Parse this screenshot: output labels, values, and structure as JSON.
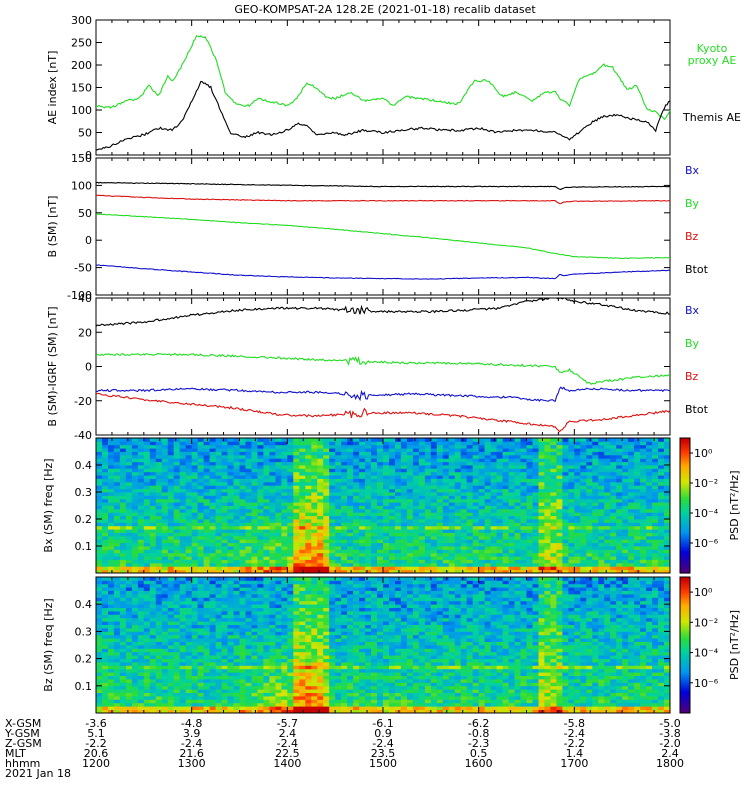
{
  "title": "GEO-KOMPSAT-2A 128.2E (2021-01-18) recalib dataset",
  "date_label": "2021 Jan 18",
  "colors": {
    "black": "#000000",
    "green": "#22dd22",
    "red": "#dd1111",
    "blue": "#1111cc"
  },
  "ephemeris": {
    "labels": [
      "X-GSM",
      "Y-GSM",
      "Z-GSM",
      "MLT",
      "hhmm"
    ],
    "columns": [
      [
        "-3.6",
        "5.1",
        "-2.2",
        "20.6",
        "1200"
      ],
      [
        "-4.8",
        "3.9",
        "-2.4",
        "21.6",
        "1300"
      ],
      [
        "-5.7",
        "2.4",
        "-2.4",
        "22.5",
        "1400"
      ],
      [
        "-6.1",
        "0.9",
        "-2.4",
        "23.5",
        "1500"
      ],
      [
        "-6.2",
        "-0.8",
        "-2.3",
        "0.5",
        "1600"
      ],
      [
        "-5.8",
        "-2.4",
        "-2.2",
        "1.4",
        "1700"
      ],
      [
        "-5.0",
        "-3.8",
        "-2.0",
        "2.4",
        "1800"
      ]
    ]
  },
  "colorbar": {
    "ylabel": "PSD [nT²/Hz]",
    "ticks": [
      "10⁰",
      "10⁻²",
      "10⁻⁴",
      "10⁻⁶"
    ]
  },
  "chart_data": [
    {
      "type": "line",
      "ylabel": "AE index [nT]",
      "ylim": [
        0,
        300
      ],
      "yticks": [
        0,
        50,
        100,
        150,
        200,
        250,
        300
      ],
      "x_range_hours": [
        12,
        18
      ],
      "series": [
        {
          "name": "Kyoto proxy AE",
          "color": "green",
          "x": [
            12.0,
            12.15,
            12.3,
            12.45,
            12.55,
            12.65,
            12.75,
            12.8,
            12.85,
            12.95,
            13.05,
            13.15,
            13.25,
            13.35,
            13.45,
            13.55,
            13.6,
            13.7,
            13.85,
            14.0,
            14.1,
            14.2,
            14.3,
            14.4,
            14.5,
            14.65,
            14.8,
            15.0,
            15.1,
            15.25,
            15.4,
            15.55,
            15.7,
            15.8,
            15.95,
            16.1,
            16.25,
            16.4,
            16.55,
            16.7,
            16.8,
            16.85,
            16.9,
            16.95,
            17.05,
            17.2,
            17.3,
            17.4,
            17.55,
            17.65,
            17.75,
            17.85,
            17.95,
            18.0
          ],
          "y": [
            110,
            105,
            120,
            125,
            155,
            130,
            175,
            165,
            180,
            220,
            265,
            260,
            215,
            140,
            115,
            110,
            110,
            125,
            118,
            110,
            125,
            160,
            150,
            130,
            125,
            140,
            120,
            125,
            110,
            130,
            125,
            120,
            115,
            115,
            165,
            165,
            130,
            140,
            120,
            140,
            140,
            125,
            120,
            110,
            170,
            180,
            200,
            195,
            145,
            155,
            105,
            95,
            80,
            100
          ]
        },
        {
          "name": "Themis AE",
          "color": "black",
          "x": [
            12.0,
            12.15,
            12.3,
            12.5,
            12.65,
            12.8,
            12.9,
            13.0,
            13.1,
            13.2,
            13.3,
            13.4,
            13.55,
            13.7,
            13.85,
            14.0,
            14.1,
            14.2,
            14.3,
            14.45,
            14.6,
            14.8,
            15.0,
            15.2,
            15.4,
            15.6,
            15.8,
            16.0,
            16.2,
            16.4,
            16.6,
            16.8,
            16.9,
            16.95,
            17.05,
            17.2,
            17.3,
            17.45,
            17.6,
            17.75,
            17.85,
            17.95,
            18.0
          ],
          "y": [
            10,
            20,
            35,
            45,
            60,
            55,
            75,
            120,
            165,
            150,
            100,
            50,
            40,
            50,
            45,
            55,
            70,
            65,
            45,
            50,
            45,
            55,
            50,
            55,
            60,
            55,
            55,
            60,
            50,
            55,
            55,
            50,
            40,
            35,
            50,
            75,
            85,
            90,
            80,
            75,
            55,
            110,
            120
          ]
        }
      ]
    },
    {
      "type": "line",
      "ylabel": "B (SM) [nT]",
      "ylim": [
        -100,
        150
      ],
      "yticks": [
        -100,
        -50,
        0,
        50,
        100,
        150
      ],
      "legend": [
        "Bx",
        "By",
        "Bz",
        "Btot"
      ],
      "series": [
        {
          "name": "Btot",
          "color": "black",
          "x": [
            12.0,
            13.0,
            14.0,
            15.0,
            16.0,
            16.8,
            16.85,
            16.9,
            17.0,
            18.0
          ],
          "y": [
            105,
            103,
            100,
            98,
            98,
            98,
            92,
            96,
            97,
            98
          ]
        },
        {
          "name": "Bz",
          "color": "red",
          "x": [
            12.0,
            12.5,
            13.0,
            14.0,
            15.0,
            16.0,
            16.8,
            16.85,
            16.9,
            17.0,
            18.0
          ],
          "y": [
            82,
            78,
            75,
            72,
            72,
            72,
            72,
            66,
            70,
            71,
            72
          ]
        },
        {
          "name": "Bx",
          "color": "green",
          "x": [
            12.0,
            12.5,
            13.0,
            13.5,
            14.0,
            14.5,
            15.0,
            15.5,
            16.0,
            16.5,
            16.85,
            17.0,
            17.5,
            18.0
          ],
          "y": [
            48,
            43,
            38,
            32,
            27,
            20,
            12,
            4,
            -5,
            -14,
            -26,
            -30,
            -33,
            -32
          ]
        },
        {
          "name": "By",
          "color": "blue",
          "x": [
            12.0,
            12.5,
            13.0,
            13.5,
            14.0,
            14.5,
            15.0,
            15.5,
            16.0,
            16.5,
            16.8,
            16.85,
            16.9,
            17.0,
            17.5,
            18.0
          ],
          "y": [
            -45,
            -52,
            -58,
            -64,
            -67,
            -69,
            -70,
            -71,
            -69,
            -68,
            -70,
            -62,
            -65,
            -62,
            -58,
            -55
          ]
        }
      ]
    },
    {
      "type": "line",
      "ylabel": "B (SM)-IGRF (SM) [nT]",
      "ylim": [
        -40,
        40
      ],
      "yticks": [
        -40,
        -20,
        0,
        20,
        40
      ],
      "legend": [
        "Bx",
        "By",
        "Bz",
        "Btot"
      ],
      "series": [
        {
          "name": "dBtot",
          "color": "black",
          "x": [
            12.0,
            12.5,
            13.0,
            13.5,
            13.9,
            14.3,
            14.6,
            15.0,
            15.5,
            15.9,
            16.2,
            16.5,
            16.75,
            16.9,
            17.0,
            17.3,
            17.6,
            18.0
          ],
          "y": [
            24,
            26,
            30,
            33,
            34,
            34,
            33,
            32,
            32,
            33,
            34,
            38,
            40,
            40,
            38,
            36,
            33,
            31
          ]
        },
        {
          "name": "dBx",
          "color": "green",
          "x": [
            12.0,
            12.5,
            13.0,
            13.5,
            13.9,
            14.3,
            14.8,
            15.3,
            15.8,
            16.3,
            16.8,
            16.85,
            16.95,
            17.15,
            17.4,
            17.7,
            18.0
          ],
          "y": [
            7,
            7,
            7,
            6,
            5,
            4,
            3,
            2,
            2,
            1,
            0,
            -4,
            -2,
            -10,
            -8,
            -6,
            -5
          ]
        },
        {
          "name": "dBz",
          "color": "blue",
          "x": [
            12.0,
            12.5,
            13.0,
            13.5,
            13.9,
            14.3,
            14.8,
            15.3,
            15.8,
            16.3,
            16.7,
            16.8,
            16.85,
            16.95,
            17.2,
            17.6,
            18.0
          ],
          "y": [
            -14,
            -14,
            -13,
            -14,
            -15,
            -15,
            -17,
            -16,
            -17,
            -18,
            -20,
            -20,
            -12,
            -14,
            -13,
            -14,
            -14
          ]
        },
        {
          "name": "dBy",
          "color": "red",
          "x": [
            12.0,
            12.3,
            12.6,
            13.0,
            13.4,
            13.9,
            14.3,
            14.8,
            15.3,
            15.8,
            16.3,
            16.8,
            16.85,
            16.95,
            17.3,
            17.7,
            18.0
          ],
          "y": [
            -16,
            -18,
            -20,
            -22,
            -24,
            -28,
            -29,
            -27,
            -27,
            -29,
            -32,
            -35,
            -38,
            -32,
            -31,
            -28,
            -26
          ]
        }
      ]
    },
    {
      "type": "heatmap",
      "ylabel": "Bx (SM) freq [Hz]",
      "ylim": [
        0,
        0.5
      ],
      "yticks": [
        0.1,
        0.2,
        0.3,
        0.4
      ],
      "ytick_labels": [
        "0.1",
        "0.2",
        "0.3",
        "0.4"
      ],
      "clim_log10": [
        -8,
        1
      ]
    },
    {
      "type": "heatmap",
      "ylabel": "Bz (SM) freq [Hz]",
      "ylim": [
        0,
        0.5
      ],
      "yticks": [
        0.1,
        0.2,
        0.3,
        0.4
      ],
      "ytick_labels": [
        "0.1",
        "0.2",
        "0.3",
        "0.4"
      ],
      "clim_log10": [
        -8,
        1
      ]
    }
  ]
}
